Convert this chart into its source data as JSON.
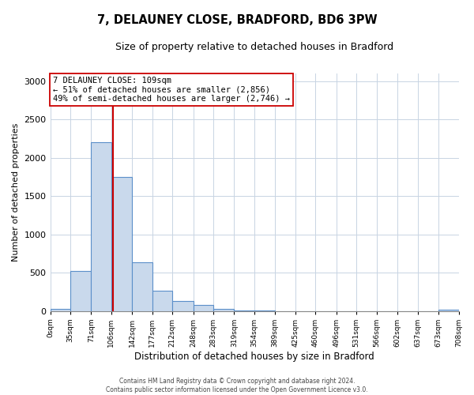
{
  "title": "7, DELAUNEY CLOSE, BRADFORD, BD6 3PW",
  "subtitle": "Size of property relative to detached houses in Bradford",
  "xlabel": "Distribution of detached houses by size in Bradford",
  "ylabel": "Number of detached properties",
  "bar_values": [
    30,
    520,
    2200,
    1750,
    640,
    265,
    130,
    75,
    30,
    10,
    5,
    0,
    0,
    0,
    0,
    0,
    0,
    0,
    0,
    20
  ],
  "bin_edges": [
    0,
    35,
    71,
    106,
    142,
    177,
    212,
    248,
    283,
    319,
    354,
    389,
    425,
    460,
    496,
    531,
    566,
    602,
    637,
    673,
    708
  ],
  "tick_labels": [
    "0sqm",
    "35sqm",
    "71sqm",
    "106sqm",
    "142sqm",
    "177sqm",
    "212sqm",
    "248sqm",
    "283sqm",
    "319sqm",
    "354sqm",
    "389sqm",
    "425sqm",
    "460sqm",
    "496sqm",
    "531sqm",
    "566sqm",
    "602sqm",
    "637sqm",
    "673sqm",
    "708sqm"
  ],
  "bar_face_color": "#c9d9ec",
  "bar_edge_color": "#5b8fc9",
  "vline_color": "#cc0000",
  "vline_x": 109,
  "ylim": [
    0,
    3100
  ],
  "yticks": [
    0,
    500,
    1000,
    1500,
    2000,
    2500,
    3000
  ],
  "annotation_title": "7 DELAUNEY CLOSE: 109sqm",
  "annotation_line1": "← 51% of detached houses are smaller (2,856)",
  "annotation_line2": "49% of semi-detached houses are larger (2,746) →",
  "annotation_box_color": "#ffffff",
  "annotation_box_edge": "#cc0000",
  "footer1": "Contains HM Land Registry data © Crown copyright and database right 2024.",
  "footer2": "Contains public sector information licensed under the Open Government Licence v3.0.",
  "background_color": "#ffffff",
  "grid_color": "#c8d4e3"
}
